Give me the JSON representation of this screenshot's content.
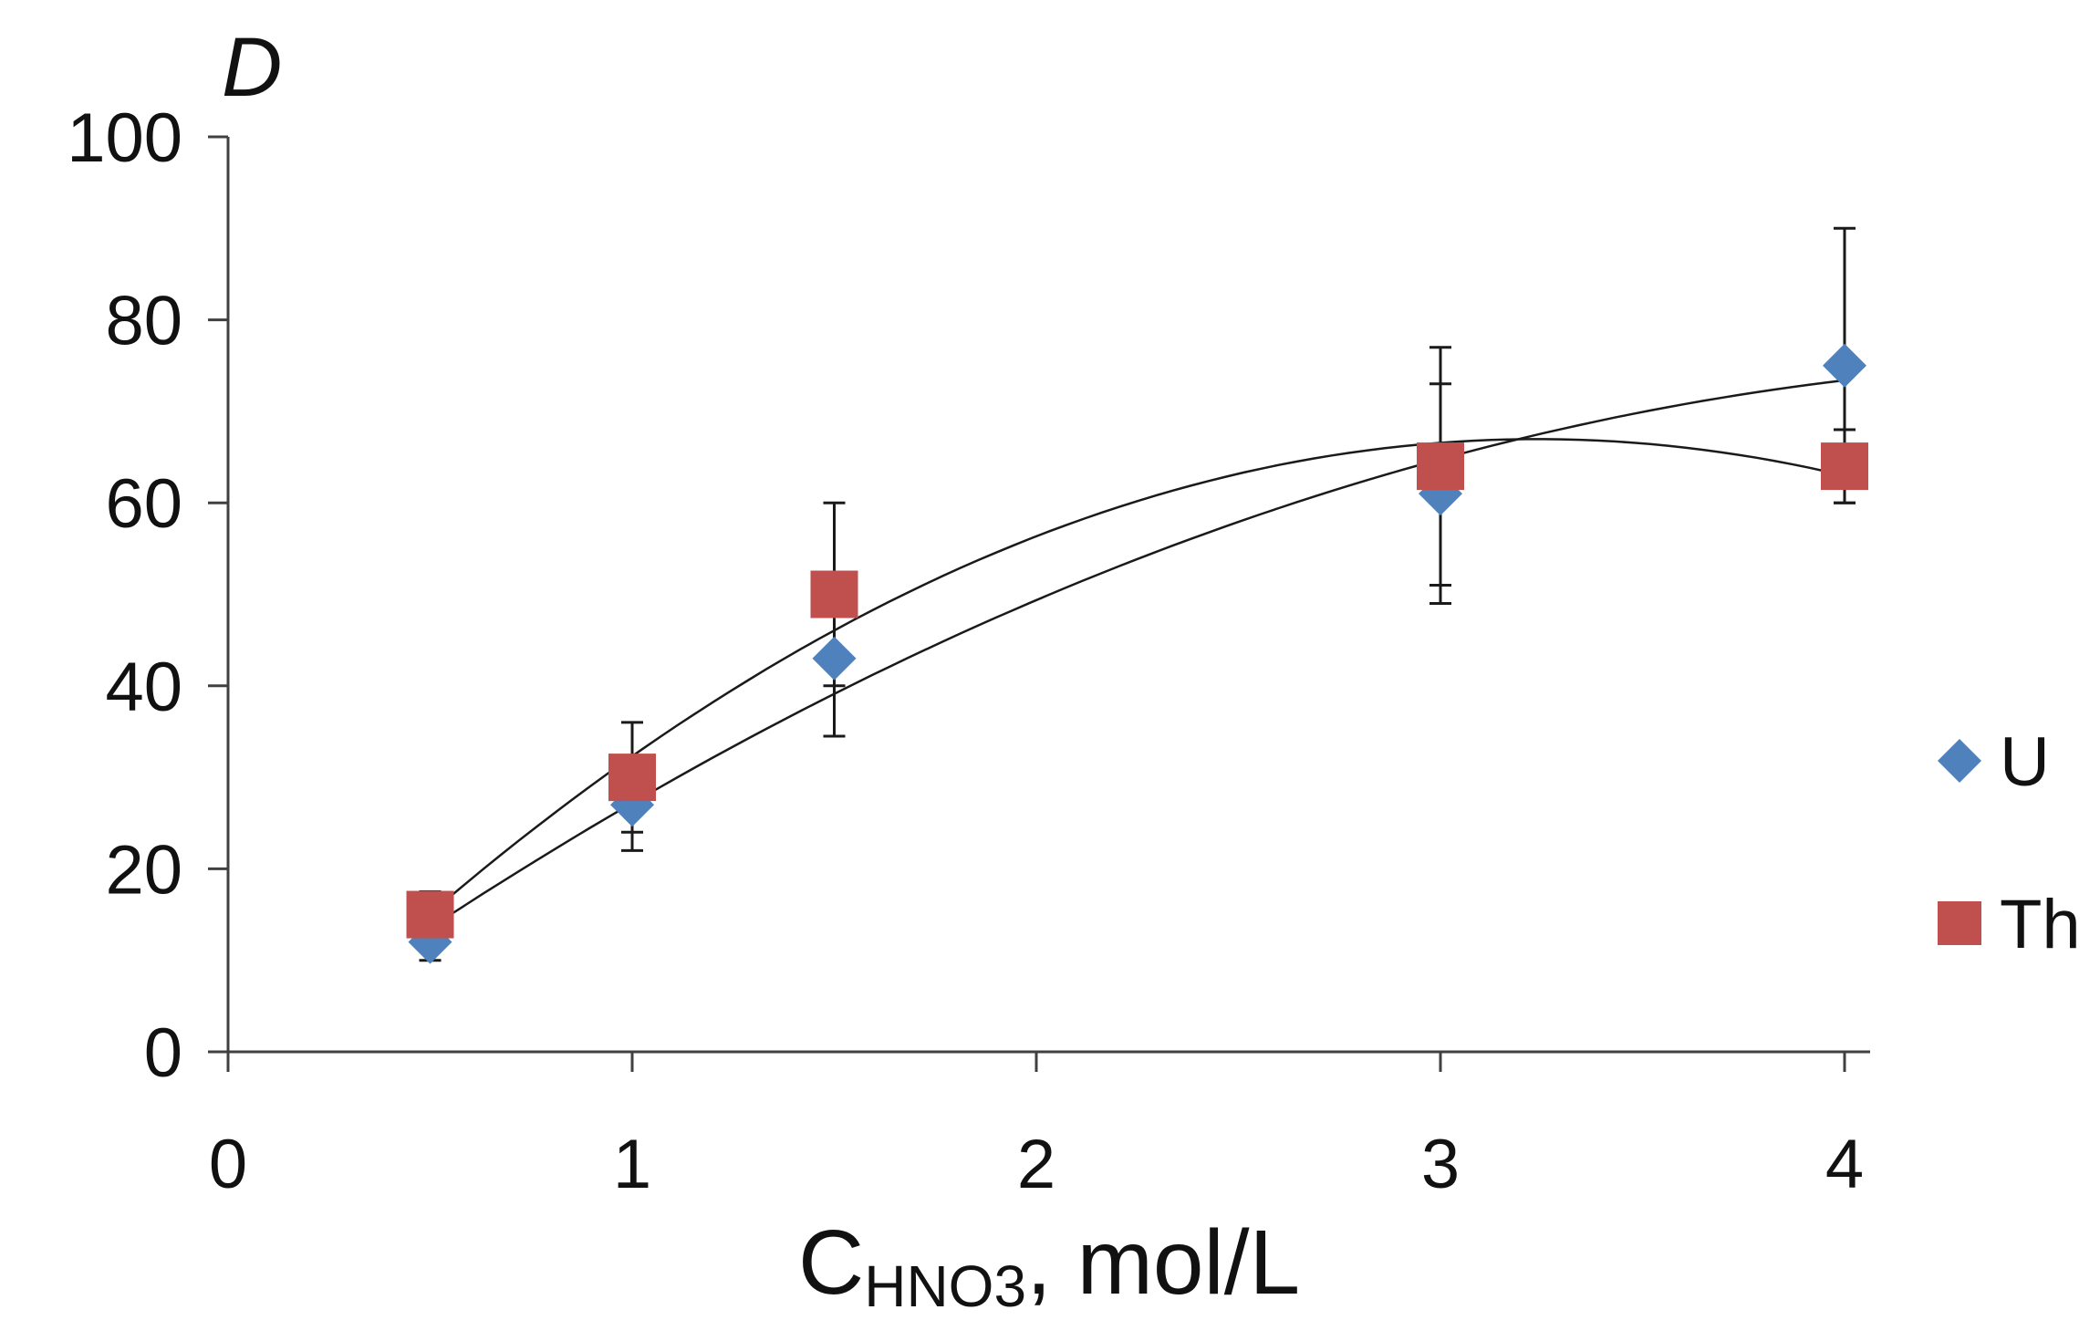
{
  "chart_data": {
    "type": "scatter",
    "title": "",
    "ylabel": "D",
    "xlabel_main": "C",
    "xlabel_sub": "HNO3",
    "xlabel_suffix": ", mol/L",
    "xlim": [
      0,
      4
    ],
    "ylim": [
      0,
      100
    ],
    "x_ticks": [
      "0",
      "1",
      "2",
      "3",
      "4"
    ],
    "y_ticks": [
      "0",
      "20",
      "40",
      "60",
      "80",
      "100"
    ],
    "grid": false,
    "legend_position": "right",
    "series": [
      {
        "name": "U",
        "color": "#4F81BD",
        "marker": "diamond",
        "x": [
          0.5,
          1,
          1.5,
          3,
          4
        ],
        "y": [
          12,
          27,
          43,
          61,
          75
        ],
        "err": [
          2,
          5,
          8.5,
          12,
          15
        ],
        "trend": "polynomial"
      },
      {
        "name": "Th",
        "color": "#C0504D",
        "marker": "square",
        "x": [
          0.5,
          1,
          1.5,
          3,
          4
        ],
        "y": [
          15,
          30,
          50,
          64,
          64
        ],
        "err": [
          2.5,
          6,
          10,
          13,
          4
        ],
        "trend": "polynomial"
      }
    ]
  }
}
